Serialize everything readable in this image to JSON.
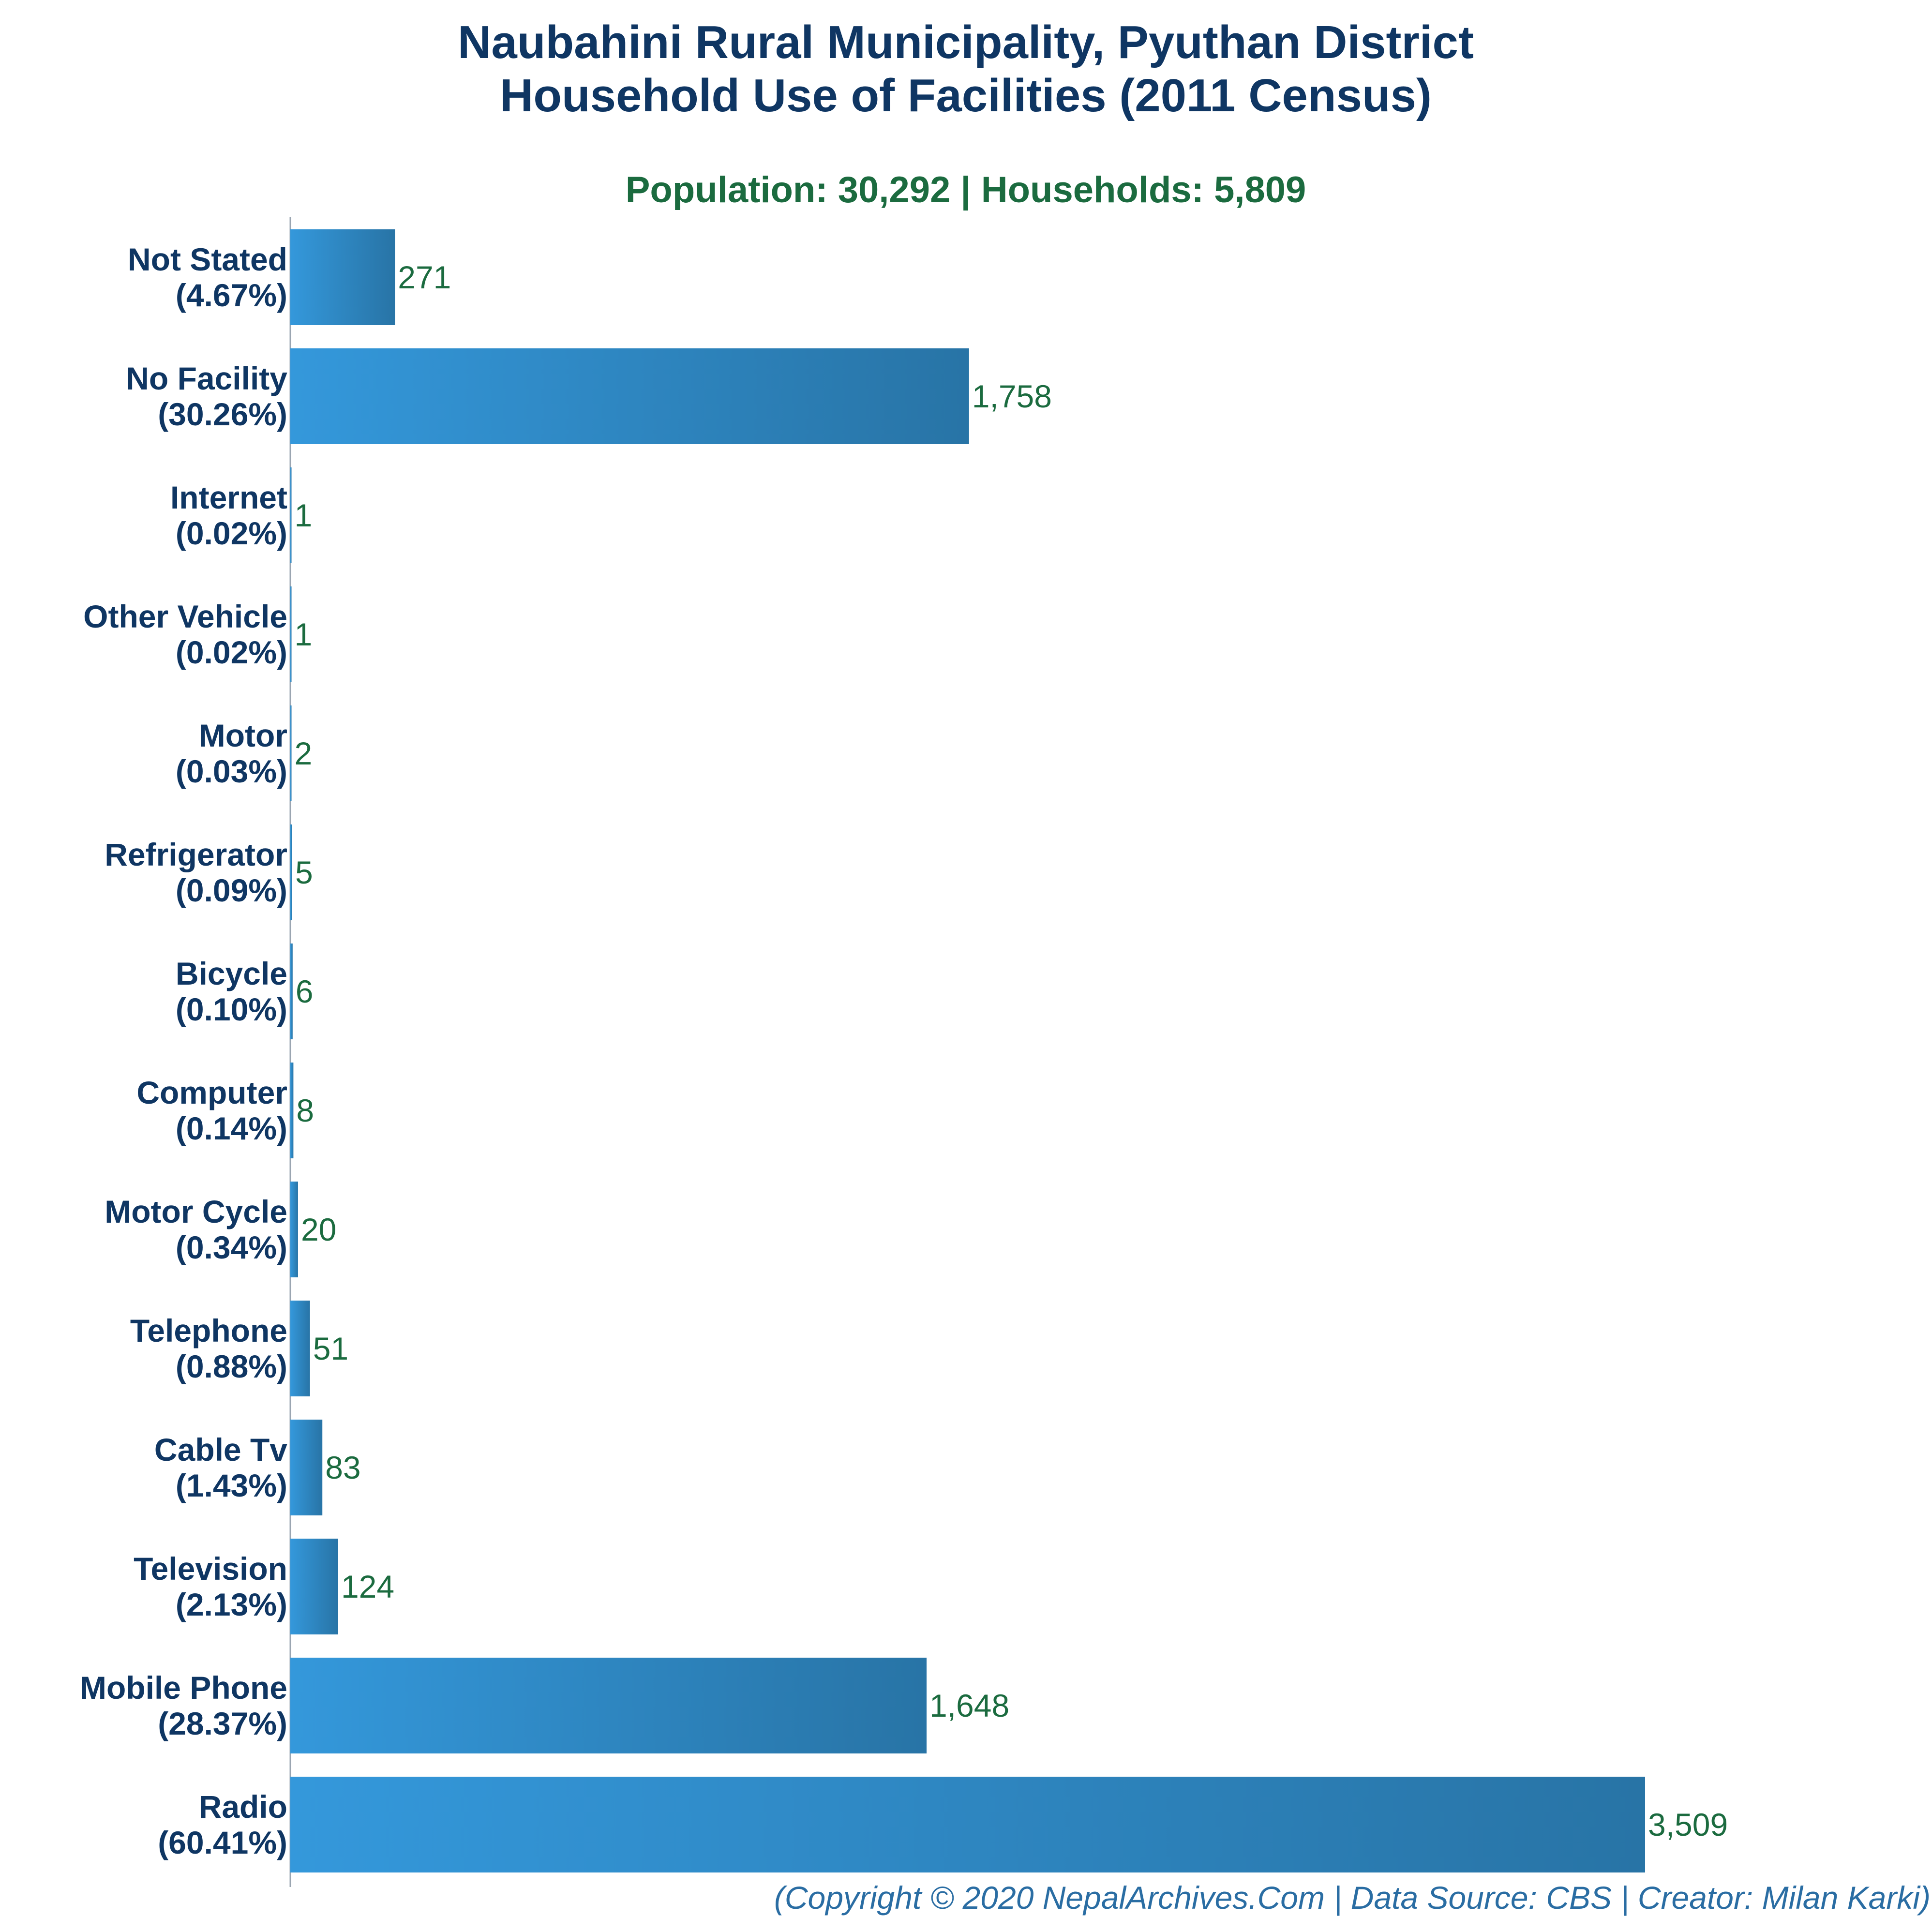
{
  "chart_data": {
    "type": "bar",
    "orientation": "horizontal",
    "title_line1": "Naubahini Rural Municipality, Pyuthan District",
    "title_line2": "Household Use of Facilities (2011 Census)",
    "subtitle": "Population: 30,292 | Households: 5,809",
    "categories": [
      "Not Stated",
      "No Facility",
      "Internet",
      "Other Vehicle",
      "Motor",
      "Refrigerator",
      "Bicycle",
      "Computer",
      "Motor Cycle",
      "Telephone",
      "Cable Tv",
      "Television",
      "Mobile Phone",
      "Radio"
    ],
    "percent_labels": [
      "(4.67%)",
      "(30.26%)",
      "(0.02%)",
      "(0.02%)",
      "(0.03%)",
      "(0.09%)",
      "(0.10%)",
      "(0.14%)",
      "(0.34%)",
      "(0.88%)",
      "(1.43%)",
      "(2.13%)",
      "(28.37%)",
      "(60.41%)"
    ],
    "values": [
      271,
      1758,
      1,
      1,
      2,
      5,
      6,
      8,
      20,
      51,
      83,
      124,
      1648,
      3509
    ],
    "value_labels": [
      "271",
      "1,758",
      "1",
      "1",
      "2",
      "5",
      "6",
      "8",
      "20",
      "51",
      "83",
      "124",
      "1,648",
      "3,509"
    ],
    "xlim": [
      0,
      3509
    ],
    "grid": false,
    "bar_color_start": "#3498db",
    "bar_color_end": "#2874a6"
  },
  "footer": "(Copyright © 2020 NepalArchives.Com | Data Source: CBS | Creator: Milan Karki)"
}
